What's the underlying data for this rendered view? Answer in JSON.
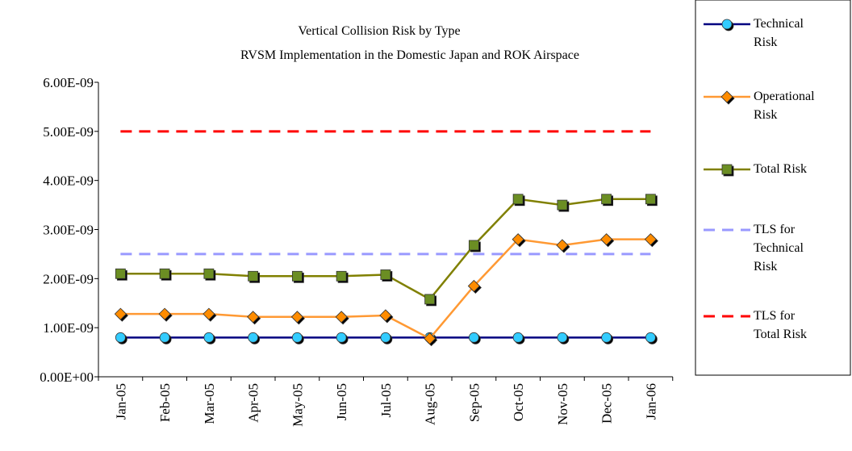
{
  "chart_data": {
    "type": "line",
    "title": "Vertical Collision Risk by Type",
    "subtitle": "RVSM Implementation in the Domestic Japan and ROK Airspace",
    "categories": [
      "Jan-05",
      "Feb-05",
      "Mar-05",
      "Apr-05",
      "May-05",
      "Jun-05",
      "Jul-05",
      "Aug-05",
      "Sep-05",
      "Oct-05",
      "Nov-05",
      "Dec-05",
      "Jan-06"
    ],
    "ylim": [
      0,
      6e-09
    ],
    "yticks": [
      {
        "value": 0,
        "label": "0.00E+00"
      },
      {
        "value": 1e-09,
        "label": "1.00E-09"
      },
      {
        "value": 2e-09,
        "label": "2.00E-09"
      },
      {
        "value": 3e-09,
        "label": "3.00E-09"
      },
      {
        "value": 4e-09,
        "label": "4.00E-09"
      },
      {
        "value": 5e-09,
        "label": "5.00E-09"
      },
      {
        "value": 6e-09,
        "label": "6.00E-09"
      }
    ],
    "grid": false,
    "legend": "right",
    "series": [
      {
        "name": "TLS for Total Risk",
        "color": "#ff0000",
        "dash": true,
        "values": [
          5e-09,
          5e-09,
          5e-09,
          5e-09,
          5e-09,
          5e-09,
          5e-09,
          5e-09,
          5e-09,
          5e-09,
          5e-09,
          5e-09,
          5e-09
        ]
      },
      {
        "name": "TLS for Technical Risk",
        "color": "#9999ff",
        "dash": true,
        "values": [
          2.5e-09,
          2.5e-09,
          2.5e-09,
          2.5e-09,
          2.5e-09,
          2.5e-09,
          2.5e-09,
          2.5e-09,
          2.5e-09,
          2.5e-09,
          2.5e-09,
          2.5e-09,
          2.5e-09
        ]
      },
      {
        "name": "Technical Risk",
        "color": "#000080",
        "marker": "circle",
        "marker_color": "#33ccff",
        "values": [
          8e-10,
          8e-10,
          8e-10,
          8e-10,
          8e-10,
          8e-10,
          8e-10,
          8e-10,
          8e-10,
          8e-10,
          8e-10,
          8e-10,
          8e-10
        ]
      },
      {
        "name": "Operational Risk",
        "color": "#ff9933",
        "marker": "diamond",
        "marker_color": "#ff8c00",
        "values": [
          1.28e-09,
          1.28e-09,
          1.28e-09,
          1.22e-09,
          1.22e-09,
          1.22e-09,
          1.25e-09,
          7.8e-10,
          1.85e-09,
          2.8e-09,
          2.68e-09,
          2.8e-09,
          2.8e-09
        ]
      },
      {
        "name": "Total Risk",
        "color": "#808000",
        "marker": "square",
        "marker_color": "#6b8e23",
        "values": [
          2.1e-09,
          2.1e-09,
          2.1e-09,
          2.05e-09,
          2.05e-09,
          2.05e-09,
          2.08e-09,
          1.58e-09,
          2.68e-09,
          3.62e-09,
          3.5e-09,
          3.62e-09,
          3.62e-09
        ]
      }
    ]
  }
}
